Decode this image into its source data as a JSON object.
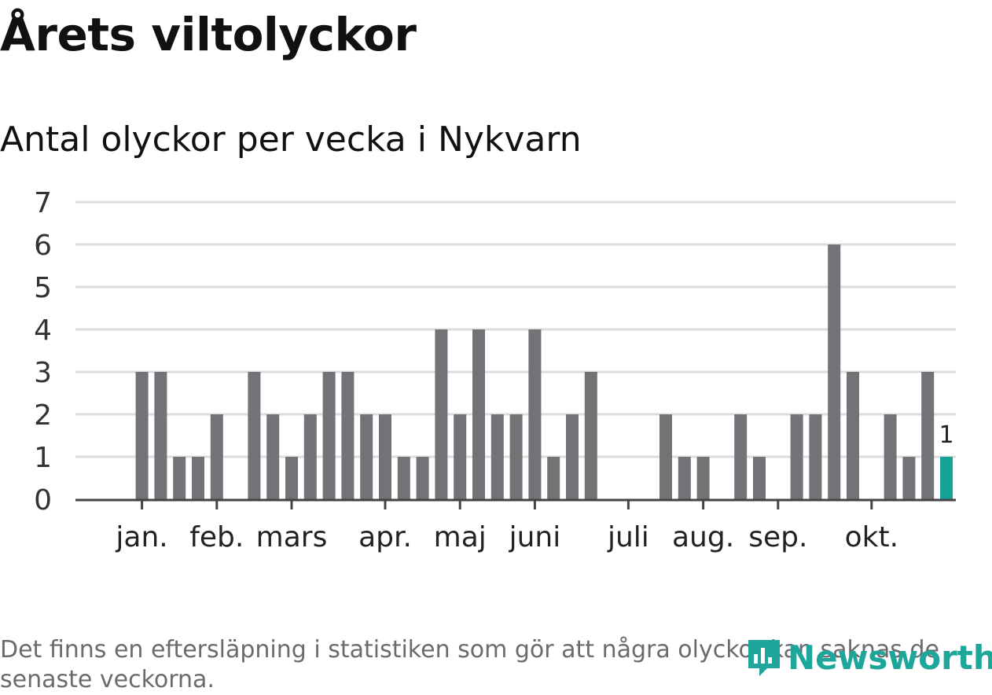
{
  "title": "Årets viltolyckor",
  "subtitle": "Antal olyckor per vecka i Nykvarn",
  "note": "Det finns en eftersläpning i statistiken som gör att några olyckor kan saknas de senaste veckorna.",
  "logo_text": "Newsworthy",
  "colors": {
    "bar": "#727277",
    "highlight": "#16a196",
    "grid": "#dcdcdc",
    "axis": "#444444"
  },
  "chart_data": {
    "type": "bar",
    "title": "Antal olyckor per vecka i Nykvarn",
    "xlabel": "",
    "ylabel": "",
    "ylim": [
      0,
      7
    ],
    "yticks": [
      "0",
      "1",
      "2",
      "3",
      "4",
      "5",
      "6",
      "7"
    ],
    "weeks": [
      1,
      2,
      3,
      4,
      5,
      6,
      7,
      8,
      9,
      10,
      11,
      12,
      13,
      14,
      15,
      16,
      17,
      18,
      19,
      20,
      21,
      22,
      23,
      24,
      25,
      26,
      27,
      28,
      29,
      30,
      31,
      32,
      33,
      34,
      35,
      36,
      37,
      38,
      39,
      40,
      41,
      42,
      43,
      44,
      45,
      46
    ],
    "values": [
      0,
      0,
      3,
      3,
      1,
      1,
      2,
      0,
      3,
      2,
      1,
      2,
      3,
      3,
      2,
      2,
      1,
      1,
      4,
      2,
      4,
      2,
      2,
      4,
      1,
      2,
      3,
      0,
      0,
      0,
      2,
      1,
      1,
      0,
      2,
      1,
      0,
      2,
      2,
      6,
      3,
      0,
      2,
      1,
      3,
      1
    ],
    "highlight_last": true,
    "data_labels": [
      {
        "week": 46,
        "text": "1"
      }
    ],
    "month_ticks": [
      {
        "label": "jan.",
        "week": 3
      },
      {
        "label": "feb.",
        "week": 7
      },
      {
        "label": "mars",
        "week": 11
      },
      {
        "label": "apr.",
        "week": 16
      },
      {
        "label": "maj",
        "week": 20
      },
      {
        "label": "juni",
        "week": 24
      },
      {
        "label": "juli",
        "week": 29
      },
      {
        "label": "aug.",
        "week": 33
      },
      {
        "label": "sep.",
        "week": 37
      },
      {
        "label": "okt.",
        "week": 42
      }
    ]
  }
}
